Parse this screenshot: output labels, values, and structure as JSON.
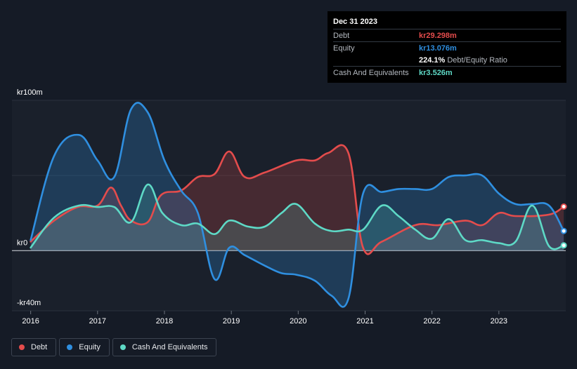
{
  "chart_data": {
    "type": "area",
    "title": "",
    "xlabel": "",
    "ylabel": "",
    "ylim": [
      -40,
      100
    ],
    "y_ticks": [
      {
        "value": 100,
        "label": "kr100m"
      },
      {
        "value": 0,
        "label": "kr0"
      },
      {
        "value": -40,
        "label": "-kr40m"
      }
    ],
    "x_ticks": [
      {
        "value": 2016,
        "label": "2016"
      },
      {
        "value": 2017,
        "label": "2017"
      },
      {
        "value": 2018,
        "label": "2018"
      },
      {
        "value": 2019,
        "label": "2019"
      },
      {
        "value": 2020,
        "label": "2020"
      },
      {
        "value": 2021,
        "label": "2021"
      },
      {
        "value": 2022,
        "label": "2022"
      },
      {
        "value": 2023,
        "label": "2023"
      }
    ],
    "xlim": [
      2015.72,
      2024.0
    ],
    "series": [
      {
        "name": "Debt",
        "color": "#e44c4c",
        "points": [
          [
            2016.0,
            6
          ],
          [
            2016.35,
            20
          ],
          [
            2016.7,
            29
          ],
          [
            2017.0,
            30
          ],
          [
            2017.2,
            42
          ],
          [
            2017.35,
            30
          ],
          [
            2017.5,
            20
          ],
          [
            2017.75,
            19
          ],
          [
            2017.95,
            37
          ],
          [
            2018.25,
            40
          ],
          [
            2018.5,
            49
          ],
          [
            2018.75,
            51
          ],
          [
            2018.97,
            66
          ],
          [
            2019.2,
            49
          ],
          [
            2019.5,
            52
          ],
          [
            2019.97,
            60
          ],
          [
            2020.25,
            60
          ],
          [
            2020.45,
            65
          ],
          [
            2020.75,
            65
          ],
          [
            2020.97,
            2
          ],
          [
            2021.25,
            6
          ],
          [
            2021.75,
            17
          ],
          [
            2022.1,
            17
          ],
          [
            2022.5,
            20
          ],
          [
            2022.75,
            17
          ],
          [
            2023.0,
            25
          ],
          [
            2023.25,
            23
          ],
          [
            2023.75,
            24
          ],
          [
            2023.97,
            29.3
          ]
        ]
      },
      {
        "name": "Equity",
        "color": "#2f8fe0",
        "points": [
          [
            2016.0,
            7
          ],
          [
            2016.35,
            63
          ],
          [
            2016.72,
            77
          ],
          [
            2017.0,
            60
          ],
          [
            2017.25,
            49
          ],
          [
            2017.5,
            94
          ],
          [
            2017.75,
            92
          ],
          [
            2018.0,
            60
          ],
          [
            2018.25,
            40
          ],
          [
            2018.5,
            25
          ],
          [
            2018.75,
            -19
          ],
          [
            2018.97,
            2
          ],
          [
            2019.2,
            -3
          ],
          [
            2019.5,
            -10
          ],
          [
            2019.75,
            -15
          ],
          [
            2019.97,
            -16
          ],
          [
            2020.25,
            -20
          ],
          [
            2020.5,
            -30
          ],
          [
            2020.75,
            -32
          ],
          [
            2020.97,
            38
          ],
          [
            2021.25,
            39
          ],
          [
            2021.5,
            41
          ],
          [
            2021.75,
            41
          ],
          [
            2022.0,
            41
          ],
          [
            2022.25,
            49
          ],
          [
            2022.5,
            50
          ],
          [
            2022.75,
            50
          ],
          [
            2023.0,
            38
          ],
          [
            2023.25,
            31
          ],
          [
            2023.5,
            31
          ],
          [
            2023.75,
            30
          ],
          [
            2023.97,
            13.1
          ]
        ]
      },
      {
        "name": "Cash And Equivalents",
        "color": "#5ed9c6",
        "points": [
          [
            2016.0,
            2
          ],
          [
            2016.35,
            22
          ],
          [
            2016.72,
            30
          ],
          [
            2017.0,
            29
          ],
          [
            2017.25,
            29
          ],
          [
            2017.5,
            19
          ],
          [
            2017.75,
            44
          ],
          [
            2017.97,
            25
          ],
          [
            2018.25,
            17
          ],
          [
            2018.5,
            18
          ],
          [
            2018.75,
            11
          ],
          [
            2018.97,
            20
          ],
          [
            2019.25,
            16
          ],
          [
            2019.5,
            16
          ],
          [
            2019.75,
            25
          ],
          [
            2019.97,
            31
          ],
          [
            2020.25,
            18
          ],
          [
            2020.5,
            13
          ],
          [
            2020.75,
            14
          ],
          [
            2020.97,
            14
          ],
          [
            2021.25,
            30
          ],
          [
            2021.5,
            23
          ],
          [
            2021.75,
            14
          ],
          [
            2022.0,
            8
          ],
          [
            2022.25,
            21
          ],
          [
            2022.5,
            7
          ],
          [
            2022.75,
            7
          ],
          [
            2023.0,
            5
          ],
          [
            2023.25,
            6
          ],
          [
            2023.5,
            30
          ],
          [
            2023.75,
            3
          ],
          [
            2023.97,
            3.5
          ]
        ]
      }
    ]
  },
  "tooltip": {
    "date": "Dec 31 2023",
    "rows": [
      {
        "label": "Debt",
        "value": "kr29.298m",
        "color": "#e44c4c"
      },
      {
        "label": "Equity",
        "value": "kr13.076m",
        "color": "#2f8fe0"
      },
      {
        "label": "",
        "value": "224.1%",
        "suffix": "Debt/Equity Ratio",
        "color": "#ffffff"
      },
      {
        "label": "Cash And Equivalents",
        "value": "kr3.526m",
        "color": "#5ed9c6"
      }
    ]
  },
  "legend": [
    {
      "label": "Debt",
      "color": "#e44c4c"
    },
    {
      "label": "Equity",
      "color": "#2f8fe0"
    },
    {
      "label": "Cash And Equivalents",
      "color": "#5ed9c6"
    }
  ]
}
